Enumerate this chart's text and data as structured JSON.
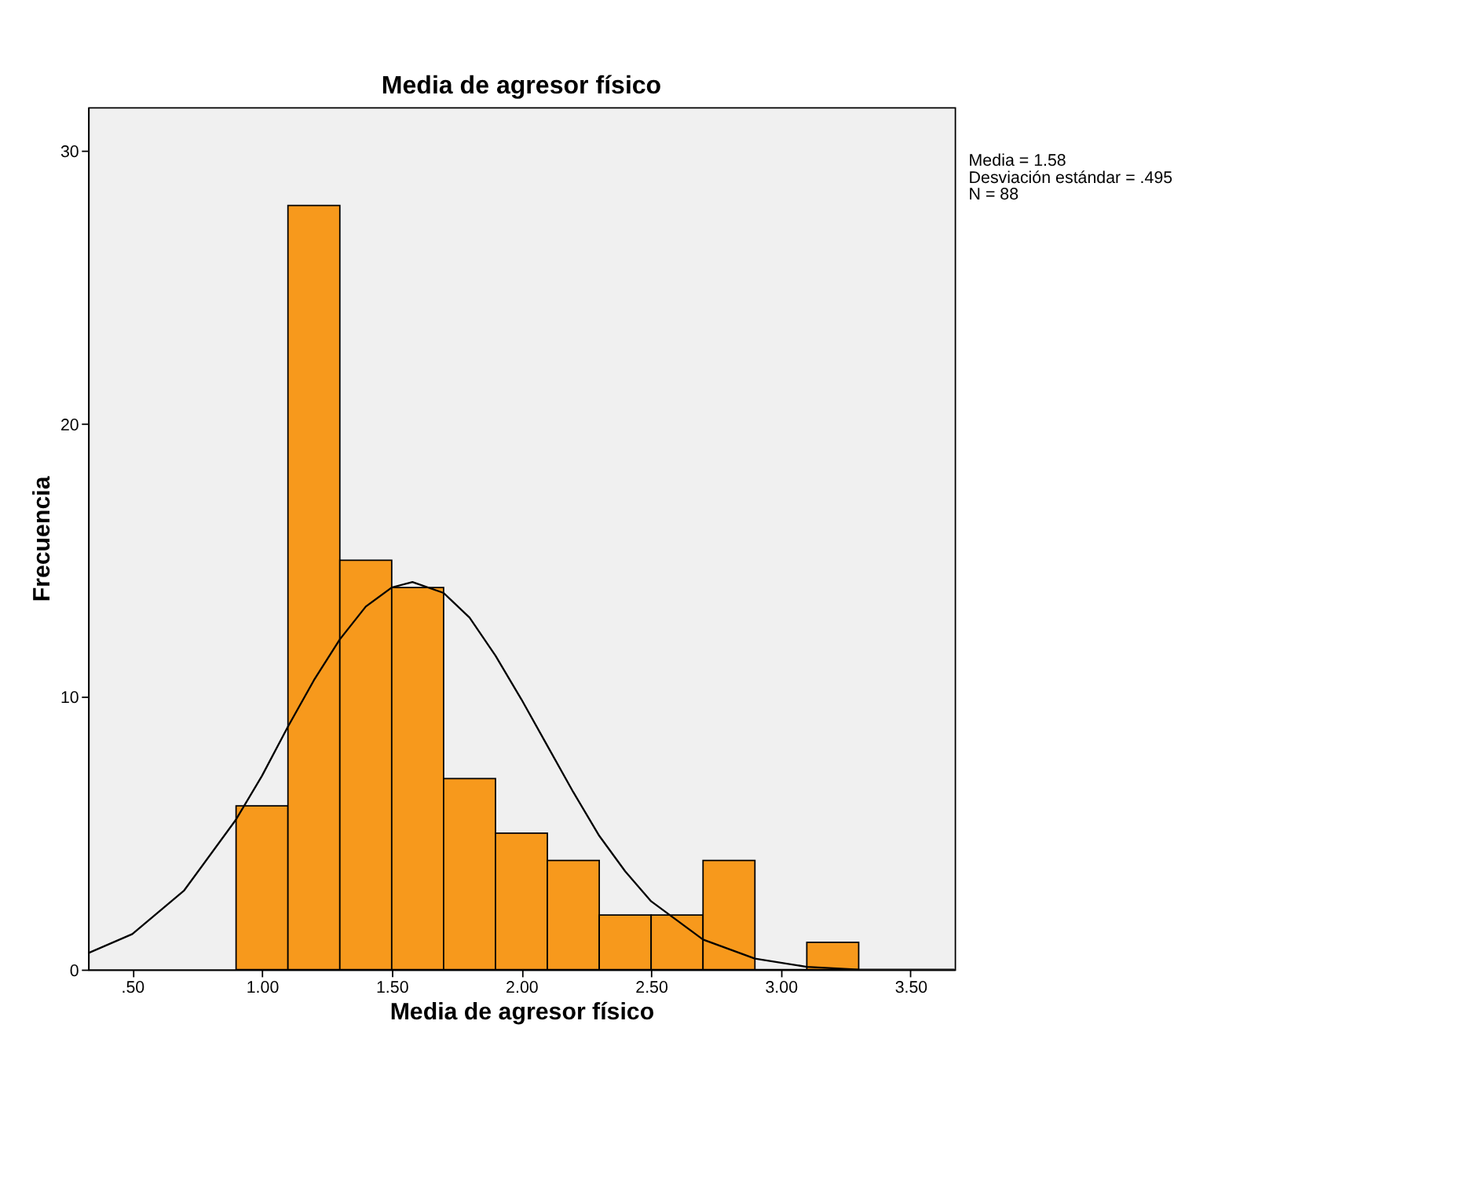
{
  "chart_data": {
    "type": "histogram",
    "title": "Media de agresor físico",
    "xlabel": "Media de agresor físico",
    "ylabel": "Frecuencia",
    "bins": [
      0.9,
      1.1,
      1.3,
      1.5,
      1.7,
      1.9,
      2.1,
      2.3,
      2.5,
      2.7,
      2.9,
      3.1,
      3.3
    ],
    "values": [
      6,
      28,
      15,
      14,
      7,
      5,
      4,
      2,
      2,
      4,
      0,
      1
    ],
    "color": "#f7991c",
    "series": [
      {
        "type": "line",
        "color": "#000000",
        "x": [
          0.33,
          0.5,
          0.7,
          0.9,
          1.0,
          1.1,
          1.2,
          1.3,
          1.4,
          1.5,
          1.58,
          1.7,
          1.8,
          1.9,
          2.0,
          2.1,
          2.2,
          2.3,
          2.4,
          2.5,
          2.7,
          2.9,
          3.1,
          3.3,
          3.67
        ],
        "values": [
          0.6,
          1.3,
          2.9,
          5.5,
          7.1,
          8.9,
          10.6,
          12.1,
          13.3,
          14.0,
          14.2,
          13.8,
          12.9,
          11.5,
          9.9,
          8.2,
          6.5,
          4.9,
          3.6,
          2.5,
          1.1,
          0.4,
          0.1,
          0.0,
          0.0
        ]
      }
    ],
    "xlim": [
      0.33,
      3.67
    ],
    "xticks": [
      {
        "value": 0.5,
        "label": ".50"
      },
      {
        "value": 1.0,
        "label": "1.00"
      },
      {
        "value": 1.5,
        "label": "1.50"
      },
      {
        "value": 2.0,
        "label": "2.00"
      },
      {
        "value": 2.5,
        "label": "2.50"
      },
      {
        "value": 3.0,
        "label": "3.00"
      },
      {
        "value": 3.5,
        "label": "3.50"
      }
    ],
    "ylim": [
      0,
      31.6
    ],
    "yticks": [
      0,
      10,
      20,
      30
    ],
    "grid": false,
    "annotations": [
      "Media = 1.58",
      "Desviación estándar = .495",
      "N = 88"
    ]
  }
}
